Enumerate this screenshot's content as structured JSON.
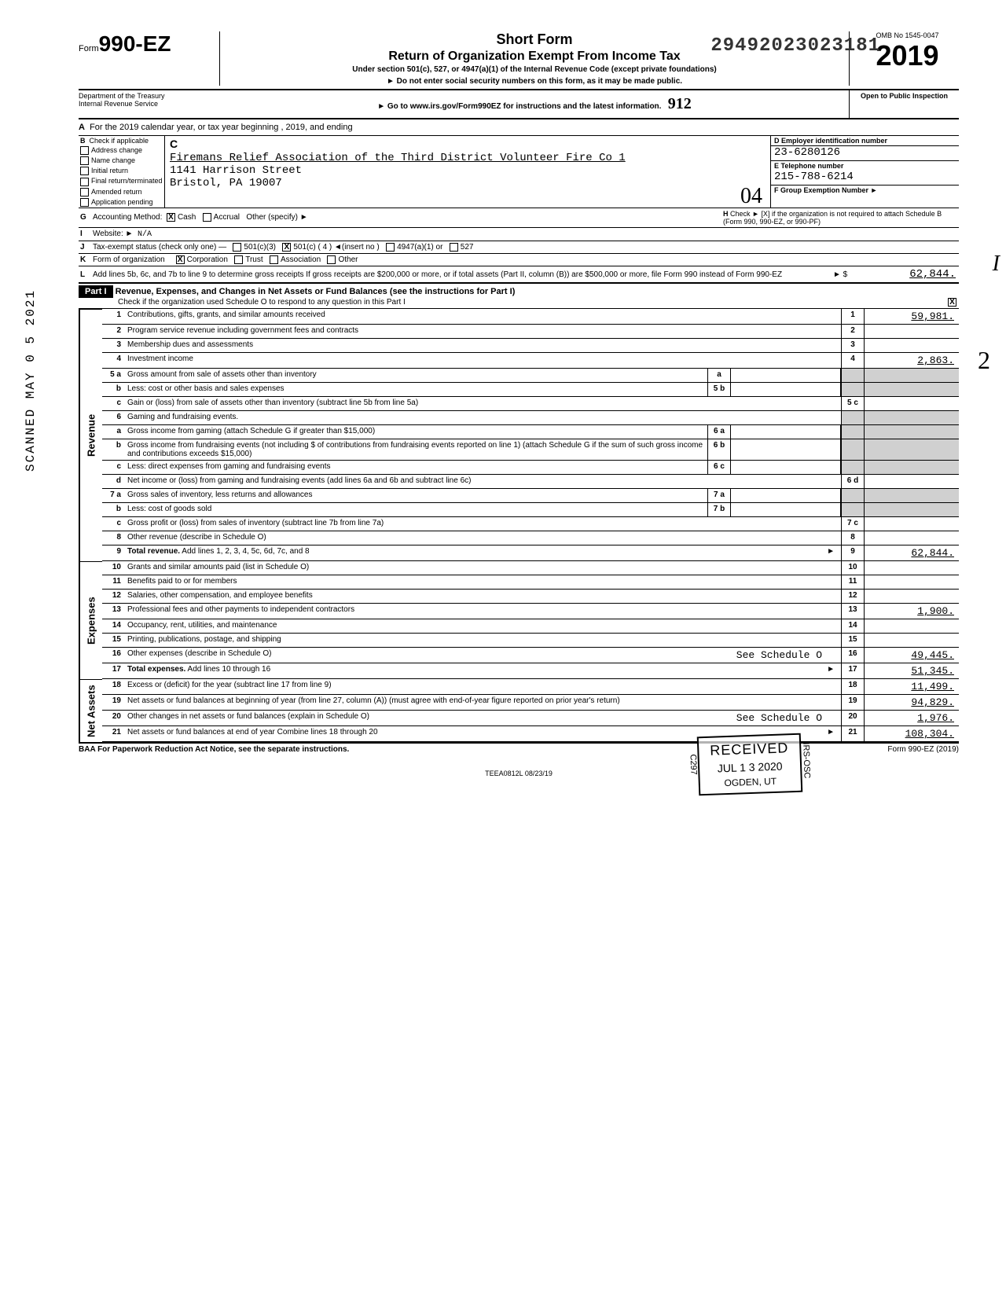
{
  "stamp_number": "29492023023181",
  "form": {
    "prefix": "Form",
    "number": "990-EZ",
    "short": "Short Form",
    "title": "Return of Organization Exempt From Income Tax",
    "subtitle": "Under section 501(c), 527, or 4947(a)(1) of the Internal Revenue Code (except private foundations)",
    "note1": "► Do not enter social security numbers on this form, as it may be made public.",
    "note2": "► Go to www.irs.gov/Form990EZ for instructions and the latest information.",
    "dept": "Department of the Treasury\nInternal Revenue Service",
    "omb": "OMB No 1545-0047",
    "year": "2019",
    "open": "Open to Public Inspection",
    "handwritten_code": "912"
  },
  "line_a": "For the 2019 calendar year, or tax year beginning                                  , 2019, and ending",
  "col_b": {
    "header": "Check if applicable",
    "items": [
      "Address change",
      "Name change",
      "Initial return",
      "Final return/terminated",
      "Amended return",
      "Application pending"
    ]
  },
  "col_c": {
    "label": "C",
    "name": "Firemans Relief Association of the Third District Volunteer Fire Co 1",
    "addr1": "1141 Harrison Street",
    "addr2": "Bristol, PA 19007",
    "stamp": "04"
  },
  "col_d": {
    "label": "D  Employer identification number",
    "value": "23-6280126"
  },
  "col_e": {
    "label": "E  Telephone number",
    "value": "215-788-6214"
  },
  "col_f": {
    "label": "F  Group Exemption Number  ►"
  },
  "line_g": {
    "label": "G",
    "text": "Accounting Method:",
    "cash": "Cash",
    "accrual": "Accrual",
    "other": "Other (specify) ►"
  },
  "line_h": "Check ► [X] if the organization is not required to attach Schedule B (Form 990, 990-EZ, or 990-PF)",
  "line_i": {
    "label": "I",
    "text": "Website: ►",
    "value": "N/A"
  },
  "line_j": {
    "label": "J",
    "text": "Tax-exempt status (check only one) —",
    "opts": [
      "501(c)(3)",
      "501(c) ( 4 )  ◄(insert no )",
      "4947(a)(1) or",
      "527"
    ]
  },
  "line_k": {
    "label": "K",
    "text": "Form of organization",
    "opts": [
      "Corporation",
      "Trust",
      "Association",
      "Other"
    ]
  },
  "line_l": {
    "label": "L",
    "text": "Add lines 5b, 6c, and 7b to line 9 to determine gross receipts  If gross receipts are $200,000 or more, or if total assets (Part II, column (B)) are $500,000 or more, file Form 990 instead of Form 990-EZ",
    "arrow": "► $",
    "value": "62,844."
  },
  "part1": {
    "label": "Part I",
    "title": "Revenue, Expenses, and Changes in Net Assets or Fund Balances (see the instructions for Part I)",
    "sub": "Check if the organization used Schedule O to respond to any question in this Part I"
  },
  "revenue_rows": [
    {
      "n": "1",
      "t": "Contributions, gifts, grants, and similar amounts received",
      "en": "1",
      "ev": "59,981."
    },
    {
      "n": "2",
      "t": "Program service revenue including government fees and contracts",
      "en": "2",
      "ev": ""
    },
    {
      "n": "3",
      "t": "Membership dues and assessments",
      "en": "3",
      "ev": ""
    },
    {
      "n": "4",
      "t": "Investment income",
      "en": "4",
      "ev": "2,863."
    },
    {
      "n": "5 a",
      "t": "Gross amount from sale of assets other than inventory",
      "mn": "a",
      "mv": ""
    },
    {
      "n": "b",
      "t": "Less: cost or other basis and sales expenses",
      "mn": "5 b",
      "mv": ""
    },
    {
      "n": "c",
      "t": "Gain or (loss) from sale of assets other than inventory (subtract line 5b from line 5a)",
      "en": "5 c",
      "ev": ""
    },
    {
      "n": "6",
      "t": "Gaming and fundraising events."
    },
    {
      "n": "a",
      "t": "Gross income from gaming (attach Schedule G if greater than $15,000)",
      "mn": "6 a",
      "mv": ""
    },
    {
      "n": "b",
      "t": "Gross income from fundraising events (not including $                        of contributions from fundraising events reported on line 1) (attach Schedule G if the sum of such gross income and contributions exceeds $15,000)",
      "mn": "6 b",
      "mv": ""
    },
    {
      "n": "c",
      "t": "Less: direct expenses from gaming and fundraising events",
      "mn": "6 c",
      "mv": ""
    },
    {
      "n": "d",
      "t": "Net income or (loss) from gaming and fundraising events (add lines 6a and 6b and subtract line 6c)",
      "en": "6 d",
      "ev": ""
    },
    {
      "n": "7 a",
      "t": "Gross sales of inventory, less returns and allowances",
      "mn": "7 a",
      "mv": ""
    },
    {
      "n": "b",
      "t": "Less: cost of goods sold",
      "mn": "7 b",
      "mv": ""
    },
    {
      "n": "c",
      "t": "Gross profit or (loss) from sales of inventory (subtract line 7b from line 7a)",
      "en": "7 c",
      "ev": ""
    },
    {
      "n": "8",
      "t": "Other revenue (describe in Schedule O)",
      "en": "8",
      "ev": ""
    },
    {
      "n": "9",
      "t": "Total revenue. Add lines 1, 2, 3, 4, 5c, 6d, 7c, and 8",
      "en": "9",
      "ev": "62,844.",
      "bold": true,
      "arrow": true
    }
  ],
  "expense_rows": [
    {
      "n": "10",
      "t": "Grants and similar amounts paid (list in Schedule O)",
      "en": "10",
      "ev": ""
    },
    {
      "n": "11",
      "t": "Benefits paid to or for members",
      "en": "11",
      "ev": ""
    },
    {
      "n": "12",
      "t": "Salaries, other compensation, and employee benefits",
      "en": "12",
      "ev": ""
    },
    {
      "n": "13",
      "t": "Professional fees and other payments to independent contractors",
      "en": "13",
      "ev": "1,900."
    },
    {
      "n": "14",
      "t": "Occupancy, rent, utilities, and maintenance",
      "en": "14",
      "ev": ""
    },
    {
      "n": "15",
      "t": "Printing, publications, postage, and shipping",
      "en": "15",
      "ev": ""
    },
    {
      "n": "16",
      "t": "Other expenses (describe in Schedule O)",
      "extra": "See Schedule O",
      "en": "16",
      "ev": "49,445."
    },
    {
      "n": "17",
      "t": "Total expenses. Add lines 10 through 16",
      "en": "17",
      "ev": "51,345.",
      "bold": true,
      "arrow": true
    }
  ],
  "netasset_rows": [
    {
      "n": "18",
      "t": "Excess or (deficit) for the year (subtract line 17 from line 9)",
      "en": "18",
      "ev": "11,499."
    },
    {
      "n": "19",
      "t": "Net assets or fund balances at beginning of year (from line 27, column (A)) (must agree with end-of-year figure reported on prior year's return)",
      "en": "19",
      "ev": "94,829."
    },
    {
      "n": "20",
      "t": "Other changes in net assets or fund balances (explain in Schedule O)",
      "extra": "See Schedule O",
      "en": "20",
      "ev": "1,976."
    },
    {
      "n": "21",
      "t": "Net assets or fund balances at end of year  Combine lines 18 through 20",
      "en": "21",
      "ev": "108,304.",
      "arrow": true
    }
  ],
  "received": {
    "r1": "RECEIVED",
    "r2": "JUL 1 3 2020",
    "r3": "OGDEN, UT"
  },
  "vert_stamps": {
    "left": "C297",
    "right": "IRS-OSC"
  },
  "side_labels": {
    "rev": "Revenue",
    "exp": "Expenses",
    "net": "Net Assets"
  },
  "scanned": "SCANNED MAY 0 5 2021",
  "footer": {
    "left": "BAA  For Paperwork Reduction Act Notice, see the separate instructions.",
    "center": "TEEA0812L  08/23/19",
    "right": "Form 990-EZ (2019)"
  },
  "margin_2": "2",
  "margin_i": "I",
  "colors": {
    "text": "#000000",
    "bg": "#ffffff",
    "shade": "#d0d0d0"
  }
}
